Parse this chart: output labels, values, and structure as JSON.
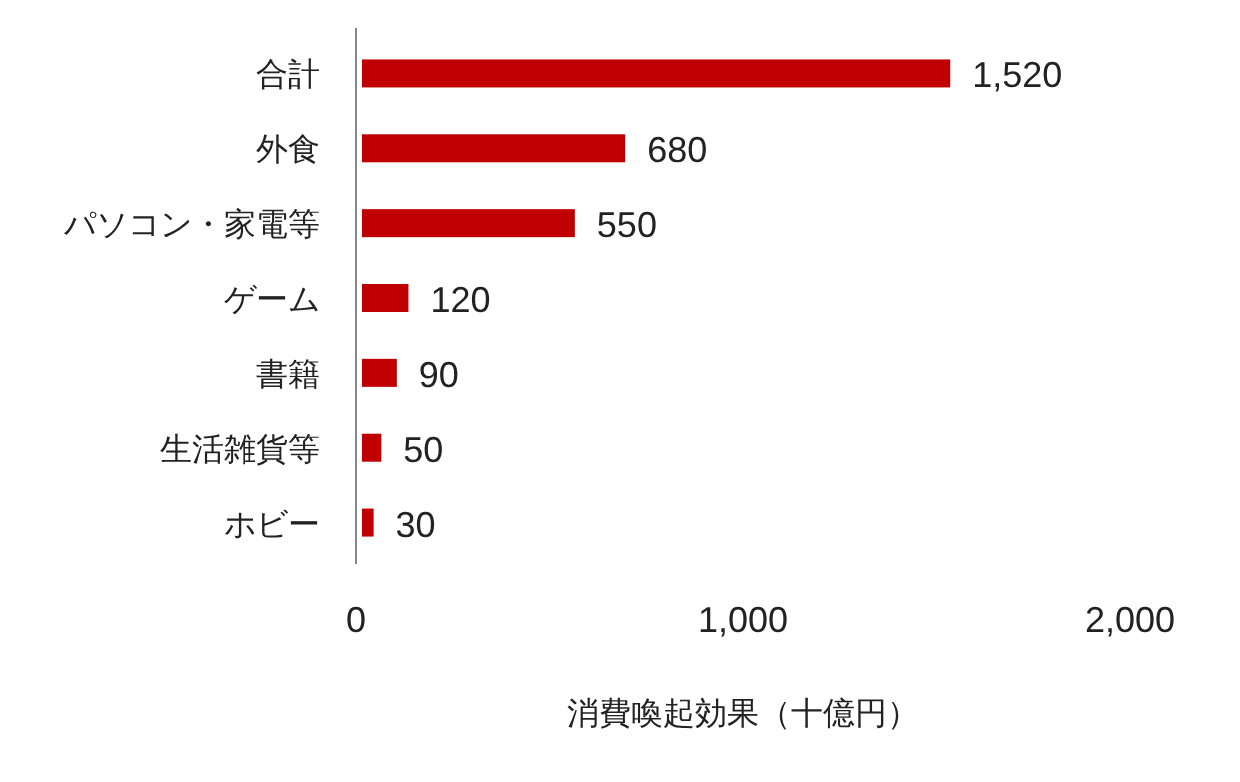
{
  "chart_data": {
    "type": "bar",
    "orientation": "horizontal",
    "xlabel": "消費喚起効果（十億円）",
    "categories": [
      "合計",
      "外食",
      "パソコン・家電等",
      "ゲーム",
      "書籍",
      "生活雑貨等",
      "ホビー"
    ],
    "values": [
      1520,
      680,
      550,
      120,
      90,
      50,
      30
    ],
    "value_labels": [
      "1,520",
      "680",
      "550",
      "120",
      "90",
      "50",
      "30"
    ],
    "color": "#c00000",
    "xlim": [
      0,
      2000
    ],
    "xticks": [
      0,
      {
        "value": 1000,
        "label": "1,000"
      },
      {
        "value": 2000,
        "label": "2,000"
      }
    ],
    "grid": false
  }
}
